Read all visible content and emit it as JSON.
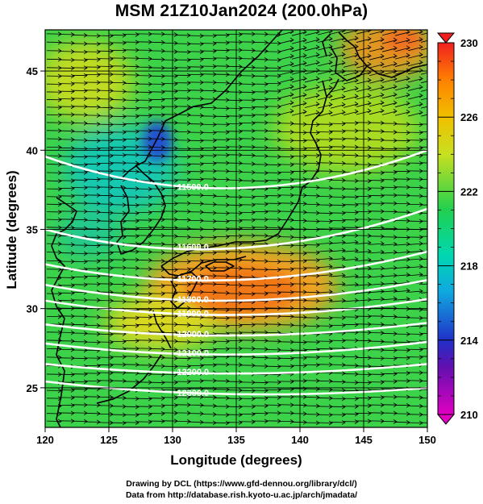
{
  "title": "MSM 21Z10Jan2024 (200.0hPa)",
  "x_axis": {
    "label": "Longitude (degrees)",
    "min": 120,
    "max": 150,
    "ticks": [
      120,
      125,
      130,
      135,
      140,
      145,
      150
    ]
  },
  "y_axis": {
    "label": "Latitude  (degrees)",
    "min": 22.5,
    "max": 47.6,
    "ticks": [
      25,
      30,
      35,
      40,
      45
    ]
  },
  "colorbar": {
    "min": 210,
    "max": 230,
    "ticks": [
      210,
      214,
      218,
      222,
      226,
      230
    ],
    "colors": [
      "#e000c0",
      "#3020c0",
      "#00d8e0",
      "#20d050",
      "#e8e000",
      "#ff9000",
      "#f02020"
    ]
  },
  "contours": [
    {
      "label": "11500.0",
      "lat_west": 39.6,
      "lat_mid": 37.6,
      "lat_east": 40.0
    },
    {
      "label": "11600.0",
      "lat_west": 35.0,
      "lat_mid": 33.8,
      "lat_east": 36.3
    },
    {
      "label": "11700.0",
      "lat_west": 32.8,
      "lat_mid": 31.8,
      "lat_east": 33.6
    },
    {
      "label": "11800.0",
      "lat_west": 31.5,
      "lat_mid": 30.5,
      "lat_east": 31.8
    },
    {
      "label": "11900.0",
      "lat_west": 30.5,
      "lat_mid": 29.6,
      "lat_east": 30.6
    },
    {
      "label": "12000.0",
      "lat_west": 29.0,
      "lat_mid": 28.3,
      "lat_east": 29.1
    },
    {
      "label": "12100.0",
      "lat_west": 27.8,
      "lat_mid": 27.1,
      "lat_east": 27.9
    },
    {
      "label": "12200.0",
      "lat_west": 26.5,
      "lat_mid": 25.9,
      "lat_east": 26.5
    },
    {
      "label": "12300.0",
      "lat_west": 25.4,
      "lat_mid": 24.6,
      "lat_east": 25.0
    }
  ],
  "credits": {
    "line1": "Drawing by DCL (https://www.gfd-dennou.org/library/dcl/)",
    "line2": "Data from http://database.rish.kyoto-u.ac.jp/arch/jmadata/"
  }
}
